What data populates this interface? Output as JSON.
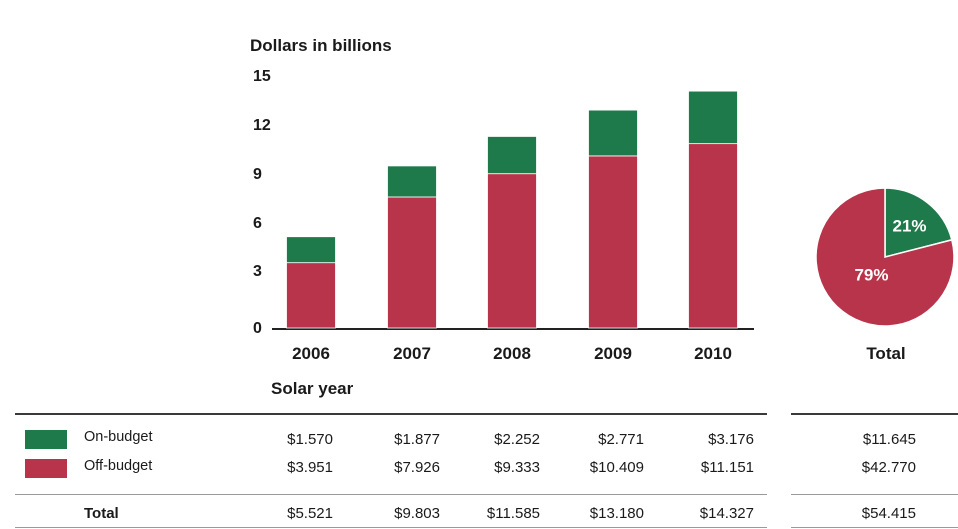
{
  "chart_data": [
    {
      "type": "bar",
      "stacked": true,
      "ylabel": "Dollars in billions",
      "xlabel": "Solar year",
      "categories": [
        "2006",
        "2007",
        "2008",
        "2009",
        "2010"
      ],
      "y_ticks": [
        "0",
        "3",
        "6",
        "9",
        "12",
        "15"
      ],
      "ylim": [
        0,
        15
      ],
      "grid": false,
      "series": [
        {
          "name": "Off-budget",
          "color": "#b8344b",
          "values": [
            3.951,
            7.926,
            9.333,
            10.409,
            11.151
          ]
        },
        {
          "name": "On-budget",
          "color": "#1e7a4a",
          "values": [
            1.57,
            1.877,
            2.252,
            2.771,
            3.176
          ]
        }
      ]
    },
    {
      "type": "pie",
      "label": "Total",
      "slices": [
        {
          "name": "On-budget",
          "value": 21,
          "text": "21%",
          "color": "#1e7a4a"
        },
        {
          "name": "Off-budget",
          "value": 79,
          "text": "79%",
          "color": "#b8344b"
        }
      ]
    },
    {
      "type": "table",
      "rows": [
        {
          "label": "On-budget",
          "color": "#1e7a4a",
          "values": [
            "$1.570",
            "$1.877",
            "$2.252",
            "$2.771",
            "$3.176"
          ],
          "total": "$11.645"
        },
        {
          "label": "Off-budget",
          "color": "#b8344b",
          "values": [
            "$3.951",
            "$7.926",
            "$9.333",
            "$10.409",
            "$11.151"
          ],
          "total": "$42.770"
        },
        {
          "label": "Total",
          "values": [
            "$5.521",
            "$9.803",
            "$11.585",
            "$13.180",
            "$14.327"
          ],
          "total": "$54.415"
        }
      ]
    }
  ]
}
